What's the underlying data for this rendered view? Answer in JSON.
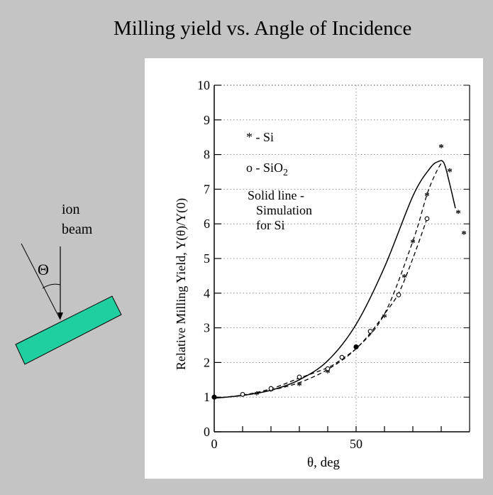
{
  "title": "Milling yield vs. Angle of Incidence",
  "diagram": {
    "label_line1": "ion",
    "label_line2": "beam",
    "angle_symbol": "Θ",
    "substrate_color": "#1fcf9f"
  },
  "chart_data": {
    "type": "scatter",
    "xlabel": "θ, deg",
    "ylabel": "Relative Milling Yield, Y(θ)/Y(0)",
    "xlim": [
      0,
      90
    ],
    "ylim": [
      0,
      10
    ],
    "x_ticks": [
      "0",
      "50"
    ],
    "y_ticks": [
      "0",
      "1",
      "2",
      "3",
      "4",
      "5",
      "6",
      "7",
      "8",
      "9",
      "10"
    ],
    "grid": true,
    "annotations": {
      "si_marker": "* - Si",
      "sio2_marker_prefix": "o - SiO",
      "sio2_subscript": "2",
      "solid_line_1": "Solid line -",
      "solid_line_2": "Simulation",
      "solid_line_3": "for Si"
    },
    "series": [
      {
        "marker": "*",
        "points": [
          [
            0,
            1.0
          ],
          [
            10,
            1.08
          ],
          [
            15,
            1.12
          ],
          [
            20,
            1.22
          ],
          [
            30,
            1.38
          ],
          [
            40,
            1.75
          ],
          [
            50,
            2.45
          ],
          [
            60,
            3.35
          ],
          [
            67,
            4.5
          ],
          [
            70,
            5.5
          ],
          [
            75,
            6.85
          ],
          [
            80,
            8.25
          ],
          [
            83,
            7.55
          ],
          [
            86,
            6.35
          ],
          [
            88,
            5.75
          ]
        ]
      },
      {
        "marker": "o",
        "points": [
          [
            0,
            1.0
          ],
          [
            10,
            1.08
          ],
          [
            20,
            1.25
          ],
          [
            30,
            1.58
          ],
          [
            40,
            1.82
          ],
          [
            45,
            2.15
          ],
          [
            50,
            2.45
          ],
          [
            55,
            2.9
          ],
          [
            65,
            3.95
          ],
          [
            75,
            6.15
          ]
        ]
      },
      {
        "style": "solid",
        "points": [
          [
            0,
            0.97
          ],
          [
            10,
            1.05
          ],
          [
            20,
            1.2
          ],
          [
            30,
            1.5
          ],
          [
            40,
            2.05
          ],
          [
            50,
            3.1
          ],
          [
            60,
            4.75
          ],
          [
            70,
            6.8
          ],
          [
            76,
            7.6
          ],
          [
            79,
            7.8
          ],
          [
            81,
            7.75
          ],
          [
            83,
            7.15
          ],
          [
            85,
            6.45
          ]
        ]
      },
      {
        "style": "dashed",
        "points": [
          [
            0,
            0.97
          ],
          [
            10,
            1.05
          ],
          [
            20,
            1.2
          ],
          [
            30,
            1.42
          ],
          [
            40,
            1.8
          ],
          [
            50,
            2.4
          ],
          [
            60,
            3.4
          ],
          [
            70,
            5.5
          ],
          [
            75,
            6.85
          ],
          [
            78,
            7.45
          ],
          [
            80,
            7.75
          ]
        ]
      },
      {
        "style": "dashed",
        "points": [
          [
            0,
            0.97
          ],
          [
            10,
            1.06
          ],
          [
            20,
            1.24
          ],
          [
            30,
            1.55
          ],
          [
            40,
            1.85
          ],
          [
            45,
            2.1
          ],
          [
            50,
            2.4
          ],
          [
            55,
            2.85
          ],
          [
            60,
            3.4
          ],
          [
            65,
            4.0
          ],
          [
            70,
            5.0
          ],
          [
            75,
            6.15
          ]
        ]
      }
    ]
  }
}
